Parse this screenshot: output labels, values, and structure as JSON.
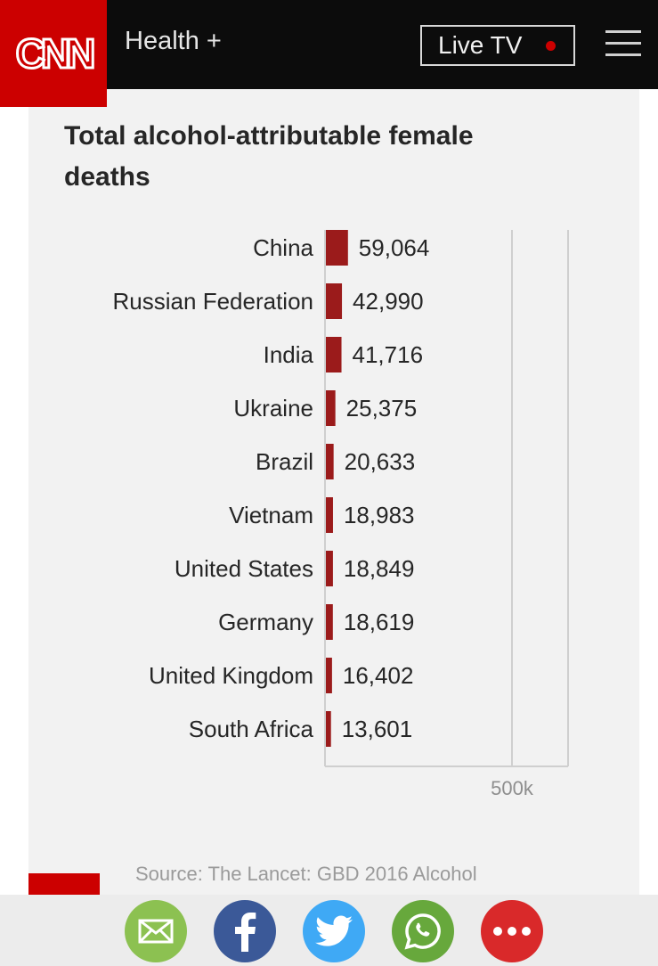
{
  "header": {
    "logo": "CNN",
    "section": "Health +",
    "live_tv": "Live TV"
  },
  "chart": {
    "title": "Total alcohol-attributable female deaths",
    "source": "Source: The Lancet: GBD 2016 Alcohol"
  },
  "chart_data": {
    "type": "bar",
    "orientation": "horizontal",
    "title": "Total alcohol-attributable female deaths",
    "categories": [
      "China",
      "Russian Federation",
      "India",
      "Ukraine",
      "Brazil",
      "Vietnam",
      "United States",
      "Germany",
      "United Kingdom",
      "South Africa"
    ],
    "values": [
      59064,
      42990,
      41716,
      25375,
      20633,
      18983,
      18849,
      18619,
      16402,
      13601
    ],
    "value_labels": [
      "59,064",
      "42,990",
      "41,716",
      "25,375",
      "20,633",
      "18,983",
      "18,849",
      "18,619",
      "16,402",
      "13,601"
    ],
    "xlim": [
      0,
      650000
    ],
    "ticks": [
      500000
    ],
    "tick_labels": [
      "500k"
    ],
    "bar_color": "#9b1b1b",
    "grid": true
  },
  "share": {
    "buttons": [
      "email",
      "facebook",
      "twitter",
      "whatsapp",
      "more"
    ]
  },
  "colors": {
    "brand": "#cc0000",
    "bar": "#9b1b1b",
    "email": "#8cc151",
    "facebook": "#3b5998",
    "twitter": "#3fa9f5",
    "whatsapp": "#67a83c",
    "more": "#d9292a"
  }
}
